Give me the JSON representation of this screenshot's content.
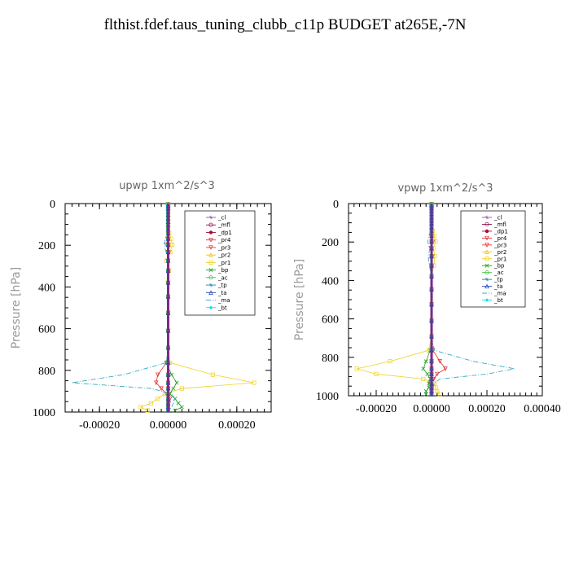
{
  "page_title": "flthist.fdef.taus_tuning_clubb_c11p  BUDGET at265E,-7N",
  "legend_entries": [
    "_cl",
    "_mfl",
    "_dp1",
    "_pr4",
    "_pr3",
    "_pr2",
    "_pr1",
    "_bp",
    "_ac",
    "_tp",
    "_ta",
    "_ma",
    "_bt"
  ],
  "colors": {
    "_cl": "#8c5aa0",
    "_mfl": "#8a1a4a",
    "_dp1": "#a01040",
    "_pr4": "#e03030",
    "_pr3": "#f03030",
    "_pr2": "#f0c000",
    "_pr1": "#f0d020",
    "_bp": "#20a020",
    "_ac": "#40c040",
    "_tp": "#1e80c0",
    "_ta": "#2040c0",
    "_ma": "#20a0c0",
    "_bt": "#00e0f0"
  },
  "chart_data": [
    {
      "type": "line",
      "title": "upwp   1xm^2/s^3",
      "ylabel": "Pressure [hPa]",
      "xlabel": "",
      "xlim": [
        -0.0003,
        0.0003
      ],
      "ylim": [
        1000,
        0
      ],
      "x_ticks": [
        -0.0002,
        0.0,
        0.0002
      ],
      "x_tick_labels": [
        "-0.00020",
        "0.00000",
        "0.00020"
      ],
      "y_ticks": [
        0,
        200,
        400,
        600,
        800,
        1000
      ],
      "y_tick_labels": [
        "0",
        "200",
        "400",
        "600",
        "800",
        "1000"
      ],
      "legend_position": "top-right",
      "levels": [
        3.6,
        7.6,
        14.4,
        24.6,
        38.3,
        54.6,
        72.0,
        87.8,
        103.3,
        121.5,
        142.9,
        168.2,
        197.9,
        232.8,
        273.9,
        322.2,
        379.1,
        445.9,
        524.6,
        609.8,
        691.4,
        763.4,
        820.9,
        859.5,
        887.0,
        912.6,
        936.2,
        957.5,
        976.3,
        992.6
      ],
      "series": [
        {
          "name": "_cl",
          "values": [
            0,
            0,
            0,
            0,
            0,
            0,
            0,
            0,
            0,
            0,
            0,
            0,
            0,
            0,
            0,
            0,
            0,
            0,
            0,
            0,
            0,
            0,
            0,
            0,
            0,
            0,
            0,
            0,
            0,
            0
          ]
        },
        {
          "name": "_mfl",
          "values": [
            0,
            0,
            0,
            0,
            0,
            0,
            0,
            0,
            0,
            0,
            0,
            0,
            0,
            0,
            0,
            0,
            0,
            0,
            0,
            0,
            0,
            0,
            0,
            0,
            0,
            0,
            0,
            0,
            0,
            0
          ]
        },
        {
          "name": "_dp1",
          "values": [
            0,
            0,
            0,
            0,
            0,
            0,
            0,
            0,
            0,
            0,
            0,
            0,
            0,
            0,
            0,
            0,
            0,
            0,
            0,
            0,
            0,
            0,
            0,
            0,
            0,
            0,
            0,
            0,
            0,
            0
          ]
        },
        {
          "name": "_pr4",
          "values": [
            0,
            0,
            0,
            0,
            0,
            0,
            0,
            0,
            0,
            0,
            0,
            -2e-06,
            -5e-06,
            4e-06,
            -2e-06,
            2e-06,
            0,
            0,
            0,
            0,
            0,
            -5e-06,
            -3e-05,
            -3.5e-05,
            -2e-05,
            -5e-06,
            5e-06,
            2e-06,
            0,
            0
          ]
        },
        {
          "name": "_pr3",
          "values": [
            0,
            0,
            0,
            0,
            0,
            0,
            0,
            0,
            0,
            0,
            0,
            0,
            0,
            0,
            0,
            0,
            0,
            0,
            0,
            0,
            0,
            0,
            0,
            0,
            0,
            0,
            0,
            0,
            0,
            0
          ]
        },
        {
          "name": "_pr2",
          "values": [
            0,
            0,
            0,
            0,
            0,
            0,
            0,
            0,
            0,
            0,
            0,
            0,
            0,
            0,
            0,
            0,
            0,
            0,
            0,
            0,
            0,
            0,
            0,
            0,
            0,
            0,
            0,
            0,
            0,
            0
          ]
        },
        {
          "name": "_pr1",
          "values": [
            0,
            0,
            0,
            0,
            0,
            0,
            0,
            0,
            0,
            0,
            3e-06,
            8e-06,
            1.2e-05,
            6e-06,
            -4e-06,
            2e-06,
            0,
            0,
            0,
            0,
            0,
            5e-06,
            0.00013,
            0.00025,
            4e-05,
            -1e-05,
            -3e-05,
            -5e-05,
            -8e-05,
            -6e-05
          ]
        },
        {
          "name": "_bp",
          "values": [
            0,
            0,
            0,
            0,
            0,
            0,
            0,
            0,
            0,
            0,
            0,
            0,
            0,
            0,
            0,
            0,
            0,
            0,
            0,
            0,
            0,
            -5e-06,
            1e-05,
            2.5e-05,
            1.5e-05,
            5e-06,
            2e-05,
            3e-05,
            4e-05,
            2e-05
          ]
        },
        {
          "name": "_ac",
          "values": [
            0,
            0,
            0,
            0,
            0,
            0,
            0,
            0,
            0,
            0,
            0,
            0,
            0,
            0,
            0,
            0,
            0,
            0,
            0,
            0,
            0,
            0,
            0,
            0,
            0,
            0,
            0,
            0,
            0,
            0
          ]
        },
        {
          "name": "_tp",
          "values": [
            0,
            0,
            0,
            0,
            0,
            0,
            0,
            0,
            0,
            0,
            0,
            0,
            0,
            0,
            0,
            0,
            0,
            0,
            0,
            0,
            0,
            0,
            0,
            0,
            0,
            0,
            0,
            0,
            0,
            0
          ]
        },
        {
          "name": "_ta",
          "values": [
            0,
            0,
            0,
            0,
            0,
            0,
            0,
            0,
            0,
            0,
            0,
            0,
            0,
            0,
            0,
            0,
            0,
            0,
            0,
            0,
            0,
            0,
            0,
            0,
            0,
            0,
            0,
            0,
            0,
            0
          ]
        },
        {
          "name": "_ma",
          "values": [
            0,
            0,
            0,
            0,
            0,
            0,
            0,
            0,
            0,
            0,
            -3e-06,
            -8e-06,
            -1.2e-05,
            -6e-06,
            4e-06,
            -2e-06,
            0,
            0,
            0,
            0,
            0,
            -5e-06,
            -0.00013,
            -0.00028,
            -5e-05,
            1e-05,
            2e-05,
            1.5e-05,
            1e-05,
            0
          ]
        },
        {
          "name": "_bt",
          "values": [
            0,
            0,
            0,
            0,
            0,
            0,
            0,
            0,
            0,
            0,
            0,
            0,
            0,
            0,
            0,
            0,
            0,
            0,
            0,
            0,
            0,
            0,
            0,
            0,
            0,
            0,
            0,
            0,
            0,
            0
          ]
        }
      ]
    },
    {
      "type": "line",
      "title": "vpwp   1xm^2/s^3",
      "ylabel": "Pressure [hPa]",
      "xlabel": "",
      "xlim": [
        -0.0003,
        0.0004
      ],
      "ylim": [
        1000,
        0
      ],
      "x_ticks": [
        -0.0002,
        0.0,
        0.0002,
        0.0004
      ],
      "x_tick_labels": [
        "-0.00020",
        "0.00000",
        "0.00020",
        "0.00040"
      ],
      "y_ticks": [
        0,
        200,
        400,
        600,
        800,
        1000
      ],
      "y_tick_labels": [
        "0",
        "200",
        "400",
        "600",
        "800",
        "1000"
      ],
      "legend_position": "top-right",
      "levels": [
        3.6,
        7.6,
        14.4,
        24.6,
        38.3,
        54.6,
        72.0,
        87.8,
        103.3,
        121.5,
        142.9,
        168.2,
        197.9,
        232.8,
        273.9,
        322.2,
        379.1,
        445.9,
        524.6,
        609.8,
        691.4,
        763.4,
        820.9,
        859.5,
        887.0,
        912.6,
        936.2,
        957.5,
        976.3,
        992.6
      ],
      "series": [
        {
          "name": "_cl",
          "values": [
            0,
            0,
            0,
            0,
            0,
            0,
            0,
            0,
            0,
            0,
            0,
            0,
            0,
            0,
            0,
            0,
            0,
            0,
            0,
            0,
            0,
            0,
            0,
            0,
            0,
            0,
            0,
            0,
            0,
            0
          ]
        },
        {
          "name": "_mfl",
          "values": [
            0,
            0,
            0,
            0,
            0,
            0,
            0,
            0,
            0,
            0,
            0,
            0,
            0,
            0,
            0,
            0,
            0,
            0,
            0,
            0,
            0,
            0,
            0,
            0,
            0,
            0,
            0,
            0,
            0,
            0
          ]
        },
        {
          "name": "_dp1",
          "values": [
            0,
            0,
            0,
            0,
            0,
            0,
            0,
            0,
            0,
            0,
            0,
            0,
            0,
            0,
            0,
            0,
            0,
            0,
            0,
            0,
            0,
            0,
            0,
            0,
            0,
            0,
            0,
            0,
            0,
            0
          ]
        },
        {
          "name": "_pr4",
          "values": [
            0,
            0,
            0,
            0,
            0,
            0,
            0,
            0,
            0,
            0,
            0,
            2e-06,
            6e-06,
            -3e-06,
            4e-06,
            -2e-06,
            0,
            0,
            0,
            0,
            0,
            5e-06,
            3e-05,
            5e-05,
            2e-05,
            8e-06,
            -5e-06,
            0,
            0,
            0
          ]
        },
        {
          "name": "_pr3",
          "values": [
            0,
            0,
            0,
            0,
            0,
            0,
            0,
            0,
            0,
            0,
            0,
            0,
            0,
            0,
            0,
            0,
            0,
            0,
            0,
            0,
            0,
            0,
            0,
            0,
            0,
            0,
            0,
            0,
            0,
            0
          ]
        },
        {
          "name": "_pr2",
          "values": [
            0,
            0,
            0,
            0,
            0,
            0,
            0,
            0,
            0,
            0,
            0,
            0,
            0,
            0,
            0,
            0,
            0,
            0,
            0,
            0,
            0,
            0,
            0,
            0,
            0,
            0,
            0,
            0,
            0,
            0
          ]
        },
        {
          "name": "_pr1",
          "values": [
            0,
            0,
            0,
            0,
            0,
            0,
            0,
            0,
            0,
            0,
            4e-06,
            1e-05,
            1.4e-05,
            6e-06,
            1.2e-05,
            8e-06,
            0,
            0,
            0,
            0,
            0,
            -1e-05,
            -0.00015,
            -0.00027,
            -0.0002,
            -3e-05,
            1e-05,
            1.5e-05,
            2e-05,
            3e-05
          ]
        },
        {
          "name": "_bp",
          "values": [
            0,
            0,
            0,
            0,
            0,
            0,
            0,
            0,
            0,
            0,
            0,
            0,
            0,
            0,
            0,
            0,
            0,
            0,
            0,
            0,
            0,
            -5e-06,
            -2e-05,
            -3e-05,
            -1.5e-05,
            -5e-06,
            -1e-05,
            -1e-05,
            -2e-05,
            -2e-05
          ]
        },
        {
          "name": "_ac",
          "values": [
            0,
            0,
            0,
            0,
            0,
            0,
            0,
            0,
            0,
            0,
            0,
            0,
            0,
            0,
            0,
            0,
            0,
            0,
            0,
            0,
            0,
            0,
            0,
            0,
            0,
            0,
            0,
            0,
            0,
            0
          ]
        },
        {
          "name": "_tp",
          "values": [
            0,
            0,
            0,
            0,
            0,
            0,
            0,
            0,
            0,
            0,
            0,
            0,
            0,
            0,
            0,
            0,
            0,
            0,
            0,
            0,
            0,
            0,
            0,
            0,
            0,
            0,
            0,
            0,
            0,
            0
          ]
        },
        {
          "name": "_ta",
          "values": [
            0,
            0,
            0,
            0,
            0,
            0,
            0,
            0,
            0,
            0,
            0,
            0,
            0,
            0,
            0,
            0,
            0,
            0,
            0,
            0,
            0,
            0,
            0,
            0,
            0,
            0,
            0,
            0,
            0,
            0
          ]
        },
        {
          "name": "_ma",
          "values": [
            0,
            0,
            0,
            0,
            0,
            0,
            0,
            0,
            0,
            0,
            -4e-06,
            -1e-05,
            -1.4e-05,
            -6e-06,
            -1.2e-05,
            -8e-06,
            0,
            0,
            0,
            0,
            0,
            1e-05,
            0.00015,
            0.0003,
            0.0002,
            3e-05,
            1e-05,
            5e-06,
            0,
            0
          ]
        },
        {
          "name": "_bt",
          "values": [
            0,
            0,
            0,
            0,
            0,
            0,
            0,
            0,
            0,
            0,
            0,
            0,
            0,
            0,
            0,
            0,
            0,
            0,
            0,
            0,
            0,
            0,
            0,
            0,
            0,
            0,
            0,
            0,
            0,
            0
          ]
        }
      ]
    }
  ]
}
